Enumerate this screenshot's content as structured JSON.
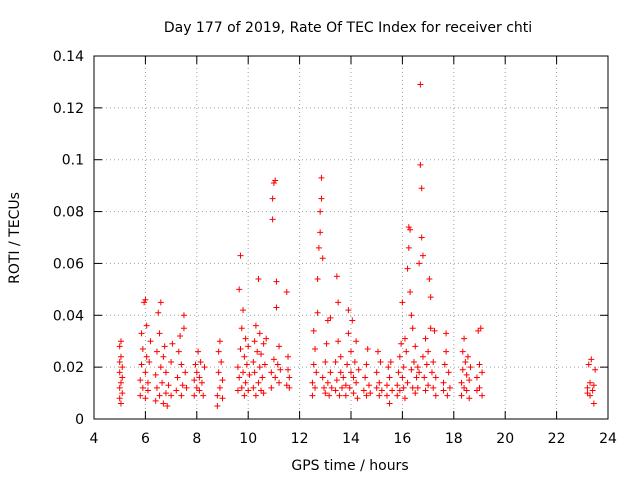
{
  "chart_data": {
    "type": "scatter",
    "title": "Day 177 of 2019, Rate Of TEC Index for receiver chti",
    "xlabel": "GPS time / hours",
    "ylabel": "ROTI / TECUs",
    "xlim": [
      4,
      24
    ],
    "ylim": [
      0,
      0.14
    ],
    "xticks": [
      4,
      6,
      8,
      10,
      12,
      14,
      16,
      18,
      20,
      22,
      24
    ],
    "xtick_labels": [
      "4",
      "6",
      "8",
      "10",
      "12",
      "14",
      "16",
      "18",
      "20",
      "22",
      "24"
    ],
    "yticks": [
      0,
      0.02,
      0.04,
      0.06,
      0.08,
      0.1,
      0.12,
      0.14
    ],
    "ytick_labels": [
      "0",
      "0.02",
      "0.04",
      "0.06",
      "0.08",
      "0.1",
      "0.12",
      "0.14"
    ],
    "grid": true,
    "marker": "plus",
    "color": "#ff0000",
    "series": [
      {
        "name": "ROTI",
        "points": [
          [
            5.0,
            0.008
          ],
          [
            5.0,
            0.012
          ],
          [
            5.0,
            0.018
          ],
          [
            5.0,
            0.022
          ],
          [
            5.0,
            0.028
          ],
          [
            5.05,
            0.006
          ],
          [
            5.05,
            0.014
          ],
          [
            5.05,
            0.024
          ],
          [
            5.05,
            0.03
          ],
          [
            5.1,
            0.01
          ],
          [
            5.1,
            0.016
          ],
          [
            5.1,
            0.02
          ],
          [
            5.8,
            0.009
          ],
          [
            5.8,
            0.015
          ],
          [
            5.85,
            0.021
          ],
          [
            5.85,
            0.033
          ],
          [
            5.9,
            0.012
          ],
          [
            5.9,
            0.027
          ],
          [
            5.95,
            0.045
          ],
          [
            6.0,
            0.008
          ],
          [
            6.0,
            0.018
          ],
          [
            6.0,
            0.046
          ],
          [
            6.05,
            0.024
          ],
          [
            6.05,
            0.036
          ],
          [
            6.1,
            0.011
          ],
          [
            6.1,
            0.014
          ],
          [
            6.15,
            0.022
          ],
          [
            6.2,
            0.03
          ],
          [
            6.4,
            0.007
          ],
          [
            6.4,
            0.017
          ],
          [
            6.45,
            0.012
          ],
          [
            6.45,
            0.026
          ],
          [
            6.5,
            0.041
          ],
          [
            6.55,
            0.009
          ],
          [
            6.55,
            0.033
          ],
          [
            6.6,
            0.045
          ],
          [
            6.6,
            0.02
          ],
          [
            6.65,
            0.014
          ],
          [
            6.7,
            0.006
          ],
          [
            6.7,
            0.024
          ],
          [
            6.75,
            0.028
          ],
          [
            6.8,
            0.01
          ],
          [
            6.8,
            0.018
          ],
          [
            6.85,
            0.005
          ],
          [
            6.9,
            0.013
          ],
          [
            7.0,
            0.022
          ],
          [
            7.0,
            0.009
          ],
          [
            7.05,
            0.029
          ],
          [
            7.2,
            0.011
          ],
          [
            7.25,
            0.016
          ],
          [
            7.3,
            0.026
          ],
          [
            7.35,
            0.032
          ],
          [
            7.4,
            0.009
          ],
          [
            7.4,
            0.021
          ],
          [
            7.45,
            0.013
          ],
          [
            7.5,
            0.035
          ],
          [
            7.5,
            0.04
          ],
          [
            7.55,
            0.018
          ],
          [
            7.6,
            0.012
          ],
          [
            7.9,
            0.009
          ],
          [
            7.9,
            0.015
          ],
          [
            7.95,
            0.021
          ],
          [
            8.0,
            0.012
          ],
          [
            8.0,
            0.018
          ],
          [
            8.05,
            0.026
          ],
          [
            8.1,
            0.011
          ],
          [
            8.1,
            0.016
          ],
          [
            8.15,
            0.022
          ],
          [
            8.2,
            0.014
          ],
          [
            8.25,
            0.009
          ],
          [
            8.3,
            0.02
          ],
          [
            8.8,
            0.005
          ],
          [
            8.8,
            0.009
          ],
          [
            8.85,
            0.018
          ],
          [
            8.85,
            0.026
          ],
          [
            8.9,
            0.012
          ],
          [
            8.9,
            0.03
          ],
          [
            8.95,
            0.022
          ],
          [
            9.0,
            0.008
          ],
          [
            9.0,
            0.015
          ],
          [
            9.6,
            0.011
          ],
          [
            9.6,
            0.02
          ],
          [
            9.65,
            0.016
          ],
          [
            9.65,
            0.05
          ],
          [
            9.7,
            0.063
          ],
          [
            9.7,
            0.027
          ],
          [
            9.75,
            0.012
          ],
          [
            9.75,
            0.035
          ],
          [
            9.8,
            0.042
          ],
          [
            9.8,
            0.018
          ],
          [
            9.85,
            0.009
          ],
          [
            9.85,
            0.024
          ],
          [
            9.9,
            0.031
          ],
          [
            9.9,
            0.014
          ],
          [
            9.95,
            0.021
          ],
          [
            10.0,
            0.011
          ],
          [
            10.0,
            0.028
          ],
          [
            10.05,
            0.017
          ],
          [
            10.2,
            0.012
          ],
          [
            10.2,
            0.022
          ],
          [
            10.25,
            0.018
          ],
          [
            10.25,
            0.03
          ],
          [
            10.3,
            0.009
          ],
          [
            10.3,
            0.036
          ],
          [
            10.35,
            0.026
          ],
          [
            10.4,
            0.014
          ],
          [
            10.4,
            0.054
          ],
          [
            10.45,
            0.02
          ],
          [
            10.45,
            0.033
          ],
          [
            10.5,
            0.011
          ],
          [
            10.5,
            0.025
          ],
          [
            10.55,
            0.016
          ],
          [
            10.6,
            0.029
          ],
          [
            10.6,
            0.01
          ],
          [
            10.65,
            0.021
          ],
          [
            10.7,
            0.031
          ],
          [
            10.9,
            0.012
          ],
          [
            10.9,
            0.018
          ],
          [
            10.95,
            0.085
          ],
          [
            10.95,
            0.077
          ],
          [
            11.0,
            0.091
          ],
          [
            11.0,
            0.023
          ],
          [
            11.05,
            0.092
          ],
          [
            11.05,
            0.016
          ],
          [
            11.1,
            0.053
          ],
          [
            11.1,
            0.043
          ],
          [
            11.15,
            0.021
          ],
          [
            11.2,
            0.014
          ],
          [
            11.2,
            0.028
          ],
          [
            11.25,
            0.019
          ],
          [
            11.5,
            0.049
          ],
          [
            11.5,
            0.013
          ],
          [
            11.55,
            0.019
          ],
          [
            11.55,
            0.024
          ],
          [
            11.6,
            0.012
          ],
          [
            11.6,
            0.016
          ],
          [
            12.5,
            0.009
          ],
          [
            12.5,
            0.014
          ],
          [
            12.55,
            0.021
          ],
          [
            12.55,
            0.034
          ],
          [
            12.6,
            0.012
          ],
          [
            12.6,
            0.027
          ],
          [
            12.65,
            0.018
          ],
          [
            12.7,
            0.041
          ],
          [
            12.7,
            0.054
          ],
          [
            12.75,
            0.066
          ],
          [
            12.8,
            0.072
          ],
          [
            12.8,
            0.08
          ],
          [
            12.85,
            0.085
          ],
          [
            12.85,
            0.093
          ],
          [
            12.9,
            0.062
          ],
          [
            12.9,
            0.016
          ],
          [
            12.95,
            0.012
          ],
          [
            13.0,
            0.022
          ],
          [
            13.0,
            0.01
          ],
          [
            13.05,
            0.029
          ],
          [
            13.1,
            0.038
          ],
          [
            13.1,
            0.014
          ],
          [
            13.15,
            0.009
          ],
          [
            13.2,
            0.039
          ],
          [
            13.2,
            0.018
          ],
          [
            13.25,
            0.012
          ],
          [
            13.4,
            0.011
          ],
          [
            13.4,
            0.022
          ],
          [
            13.45,
            0.015
          ],
          [
            13.45,
            0.055
          ],
          [
            13.5,
            0.045
          ],
          [
            13.5,
            0.03
          ],
          [
            13.55,
            0.009
          ],
          [
            13.6,
            0.018
          ],
          [
            13.6,
            0.024
          ],
          [
            13.65,
            0.012
          ],
          [
            13.7,
            0.016
          ],
          [
            13.8,
            0.009
          ],
          [
            13.8,
            0.013
          ],
          [
            13.85,
            0.021
          ],
          [
            13.9,
            0.033
          ],
          [
            13.9,
            0.042
          ],
          [
            13.95,
            0.012
          ],
          [
            14.0,
            0.018
          ],
          [
            14.0,
            0.026
          ],
          [
            14.05,
            0.038
          ],
          [
            14.1,
            0.01
          ],
          [
            14.1,
            0.016
          ],
          [
            14.15,
            0.022
          ],
          [
            14.2,
            0.014
          ],
          [
            14.2,
            0.03
          ],
          [
            14.25,
            0.008
          ],
          [
            14.3,
            0.019
          ],
          [
            14.5,
            0.011
          ],
          [
            14.55,
            0.016
          ],
          [
            14.6,
            0.009
          ],
          [
            14.6,
            0.021
          ],
          [
            14.65,
            0.027
          ],
          [
            14.7,
            0.013
          ],
          [
            14.75,
            0.01
          ],
          [
            15.0,
            0.012
          ],
          [
            15.0,
            0.018
          ],
          [
            15.05,
            0.026
          ],
          [
            15.1,
            0.009
          ],
          [
            15.1,
            0.014
          ],
          [
            15.15,
            0.022
          ],
          [
            15.2,
            0.011
          ],
          [
            15.4,
            0.009
          ],
          [
            15.4,
            0.013
          ],
          [
            15.45,
            0.02
          ],
          [
            15.5,
            0.006
          ],
          [
            15.5,
            0.016
          ],
          [
            15.55,
            0.022
          ],
          [
            15.6,
            0.011
          ],
          [
            15.8,
            0.009
          ],
          [
            15.8,
            0.013
          ],
          [
            15.85,
            0.018
          ],
          [
            15.9,
            0.024
          ],
          [
            15.9,
            0.011
          ],
          [
            15.95,
            0.029
          ],
          [
            16.0,
            0.045
          ],
          [
            16.0,
            0.016
          ],
          [
            16.05,
            0.012
          ],
          [
            16.05,
            0.02
          ],
          [
            16.1,
            0.031
          ],
          [
            16.1,
            0.008
          ],
          [
            16.15,
            0.026
          ],
          [
            16.2,
            0.058
          ],
          [
            16.2,
            0.014
          ],
          [
            16.25,
            0.066
          ],
          [
            16.25,
            0.074
          ],
          [
            16.3,
            0.073
          ],
          [
            16.3,
            0.049
          ],
          [
            16.35,
            0.04
          ],
          [
            16.35,
            0.019
          ],
          [
            16.4,
            0.012
          ],
          [
            16.4,
            0.035
          ],
          [
            16.45,
            0.022
          ],
          [
            16.5,
            0.028
          ],
          [
            16.5,
            0.01
          ],
          [
            16.55,
            0.016
          ],
          [
            16.6,
            0.012
          ],
          [
            16.6,
            0.02
          ],
          [
            16.65,
            0.018
          ],
          [
            16.65,
            0.06
          ],
          [
            16.7,
            0.129
          ],
          [
            16.7,
            0.098
          ],
          [
            16.75,
            0.089
          ],
          [
            16.75,
            0.07
          ],
          [
            16.8,
            0.063
          ],
          [
            16.8,
            0.024
          ],
          [
            16.85,
            0.016
          ],
          [
            16.9,
            0.031
          ],
          [
            16.9,
            0.011
          ],
          [
            16.95,
            0.021
          ],
          [
            17.0,
            0.013
          ],
          [
            17.0,
            0.026
          ],
          [
            17.05,
            0.054
          ],
          [
            17.1,
            0.047
          ],
          [
            17.1,
            0.035
          ],
          [
            17.15,
            0.018
          ],
          [
            17.2,
            0.012
          ],
          [
            17.2,
            0.022
          ],
          [
            17.25,
            0.034
          ],
          [
            17.3,
            0.009
          ],
          [
            17.3,
            0.016
          ],
          [
            17.6,
            0.011
          ],
          [
            17.6,
            0.014
          ],
          [
            17.65,
            0.021
          ],
          [
            17.7,
            0.026
          ],
          [
            17.7,
            0.033
          ],
          [
            17.75,
            0.009
          ],
          [
            17.8,
            0.018
          ],
          [
            17.85,
            0.012
          ],
          [
            18.3,
            0.009
          ],
          [
            18.3,
            0.014
          ],
          [
            18.35,
            0.019
          ],
          [
            18.35,
            0.026
          ],
          [
            18.4,
            0.012
          ],
          [
            18.4,
            0.031
          ],
          [
            18.45,
            0.022
          ],
          [
            18.5,
            0.017
          ],
          [
            18.5,
            0.011
          ],
          [
            18.55,
            0.024
          ],
          [
            18.6,
            0.008
          ],
          [
            18.6,
            0.015
          ],
          [
            18.65,
            0.02
          ],
          [
            18.9,
            0.011
          ],
          [
            18.9,
            0.016
          ],
          [
            18.95,
            0.034
          ],
          [
            19.0,
            0.021
          ],
          [
            19.0,
            0.012
          ],
          [
            19.05,
            0.035
          ],
          [
            19.1,
            0.009
          ],
          [
            19.1,
            0.018
          ],
          [
            23.2,
            0.01
          ],
          [
            23.2,
            0.012
          ],
          [
            23.25,
            0.021
          ],
          [
            23.3,
            0.009
          ],
          [
            23.3,
            0.014
          ],
          [
            23.35,
            0.023
          ],
          [
            23.4,
            0.011
          ],
          [
            23.45,
            0.006
          ],
          [
            23.45,
            0.013
          ],
          [
            23.5,
            0.019
          ]
        ]
      }
    ]
  }
}
